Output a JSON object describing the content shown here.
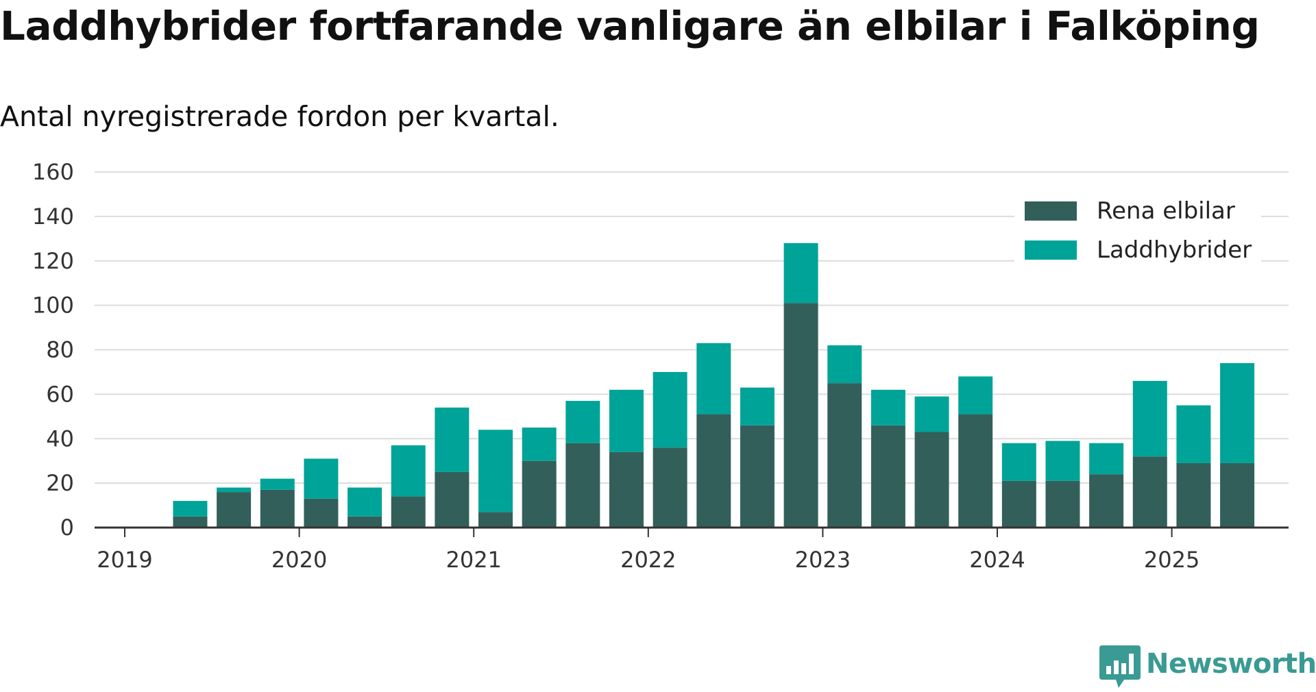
{
  "title": "Laddhybrider fortfarande vanligare än elbilar i Falköping",
  "subtitle": "Antal nyregistrerade fordon per kvartal.",
  "brand": {
    "name": "Newsworthy",
    "icon": "newsworthy-logo-icon",
    "color": "#3a9a94"
  },
  "chart_data": {
    "type": "bar",
    "stacked": true,
    "x_tick_labels": [
      "2019",
      "2020",
      "2021",
      "2022",
      "2023",
      "2024",
      "2025"
    ],
    "y_tick_labels": [
      "0",
      "20",
      "40",
      "60",
      "80",
      "100",
      "120",
      "140",
      "160"
    ],
    "ylim": [
      0,
      160
    ],
    "grid": true,
    "legend_position": "top-right",
    "x": [
      "2019-Q2",
      "2019-Q3",
      "2019-Q4",
      "2020-Q1",
      "2020-Q2",
      "2020-Q3",
      "2020-Q4",
      "2021-Q1",
      "2021-Q2",
      "2021-Q3",
      "2021-Q4",
      "2022-Q1",
      "2022-Q2",
      "2022-Q3",
      "2022-Q4",
      "2023-Q1",
      "2023-Q2",
      "2023-Q3",
      "2023-Q4",
      "2024-Q1",
      "2024-Q2",
      "2024-Q3",
      "2024-Q4",
      "2025-Q1",
      "2025-Q2"
    ],
    "series": [
      {
        "name": "Rena elbilar",
        "color": "#335f5a",
        "values": [
          5,
          16,
          17,
          13,
          5,
          14,
          25,
          7,
          30,
          38,
          34,
          36,
          51,
          46,
          101,
          65,
          46,
          43,
          51,
          21,
          21,
          24,
          32,
          29,
          29
        ]
      },
      {
        "name": "Laddhybrider",
        "color": "#00a398",
        "values": [
          7,
          2,
          5,
          18,
          13,
          23,
          29,
          37,
          15,
          19,
          28,
          34,
          32,
          17,
          27,
          17,
          16,
          16,
          17,
          17,
          18,
          14,
          34,
          26,
          45
        ]
      }
    ]
  }
}
